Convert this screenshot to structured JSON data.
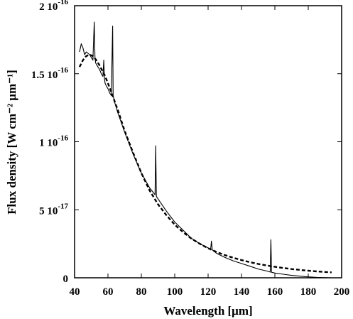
{
  "chart_data": {
    "type": "line",
    "xlabel": "Wavelength [μm]",
    "ylabel": "Flux density [W cm⁻² μm⁻¹]",
    "xlim": [
      40,
      200
    ],
    "ylim": [
      0,
      2e-16
    ],
    "x_ticks": [
      40,
      60,
      80,
      100,
      120,
      140,
      160,
      180,
      200
    ],
    "x_tick_labels": [
      "40",
      "60",
      "80",
      "100",
      "120",
      "140",
      "160",
      "180",
      "200"
    ],
    "y_ticks": [
      0,
      5e-17,
      1e-16,
      1.5e-16,
      2e-16
    ],
    "y_tick_labels": [
      {
        "mantissa": "0",
        "exponent": ""
      },
      {
        "mantissa": "5 10",
        "exponent": "-17"
      },
      {
        "mantissa": "1 10",
        "exponent": "-16"
      },
      {
        "mantissa": "1.5 10",
        "exponent": "-16"
      },
      {
        "mantissa": "2 10",
        "exponent": "-16"
      }
    ],
    "grid": false,
    "legend": "none",
    "series": [
      {
        "style": "solid",
        "color": "#000000",
        "x": [
          43,
          44,
          45,
          46,
          47,
          48,
          49,
          50,
          51,
          51.8,
          52.2,
          52.6,
          53,
          54,
          55,
          56,
          57,
          57.5,
          57.9,
          58.3,
          59,
          60,
          61,
          62,
          62.8,
          63.1,
          63.5,
          64,
          66,
          70,
          75,
          80,
          85,
          87,
          88.2,
          88.6,
          89,
          89.4,
          90,
          95,
          100,
          105,
          110,
          115,
          120,
          121.5,
          122,
          122.5,
          125,
          130,
          135,
          140,
          145,
          150,
          155,
          156.5,
          157.2,
          157.6,
          158,
          158.8,
          160,
          165,
          170,
          175,
          180,
          185,
          190,
          194
        ],
        "y": [
          1.66e-16,
          1.72e-16,
          1.69e-16,
          1.64e-16,
          1.66e-16,
          1.65e-16,
          1.64e-16,
          1.62e-16,
          1.6e-16,
          1.88e-16,
          1.62e-16,
          1.58e-16,
          1.57e-16,
          1.55e-16,
          1.53e-16,
          1.5e-16,
          1.48e-16,
          1.6e-16,
          1.46e-16,
          1.43e-16,
          1.41e-16,
          1.39e-16,
          1.36e-16,
          1.34e-16,
          1.85e-16,
          1.34e-16,
          1.32e-16,
          1.29e-16,
          1.21e-16,
          1.07e-16,
          9.1e-17,
          7.7e-17,
          6.6e-17,
          6.3e-17,
          6.1e-17,
          9.7e-17,
          6e-17,
          5.9e-17,
          5.8e-17,
          4.9e-17,
          4.1e-17,
          3.5e-17,
          2.9e-17,
          2.5e-17,
          2.2e-17,
          2.05e-17,
          2.7e-17,
          2.05e-17,
          1.8e-17,
          1.5e-17,
          1.25e-17,
          1.05e-17,
          8.5e-18,
          6.5e-18,
          5e-18,
          4.5e-18,
          4.2e-18,
          2.8e-17,
          4e-18,
          3.8e-18,
          3.5e-18,
          2.6e-18,
          1.8e-18,
          1.2e-18,
          7e-19,
          3e-19,
          1e-19,
          0
        ]
      },
      {
        "style": "dashed",
        "color": "#000000",
        "x": [
          43,
          45,
          47,
          49,
          51,
          53,
          55,
          58,
          60,
          63,
          66,
          70,
          75,
          80,
          85,
          90,
          95,
          100,
          105,
          110,
          115,
          120,
          125,
          130,
          135,
          140,
          145,
          150,
          155,
          160,
          165,
          170,
          175,
          180,
          185,
          190,
          194
        ],
        "y": [
          1.55e-16,
          1.6e-16,
          1.63e-16,
          1.64e-16,
          1.63e-16,
          1.6e-16,
          1.56e-16,
          1.49e-16,
          1.43e-16,
          1.33e-16,
          1.23e-16,
          1.08e-16,
          9.2e-17,
          7.7e-17,
          6.4e-17,
          5.4e-17,
          4.6e-17,
          3.9e-17,
          3.35e-17,
          2.88e-17,
          2.5e-17,
          2.17e-17,
          1.9e-17,
          1.67e-17,
          1.47e-17,
          1.3e-17,
          1.15e-17,
          1.02e-17,
          9.1e-18,
          8.1e-18,
          7.2e-18,
          6.4e-18,
          5.8e-18,
          5.2e-18,
          4.7e-18,
          4.3e-18,
          4e-18
        ]
      }
    ]
  }
}
